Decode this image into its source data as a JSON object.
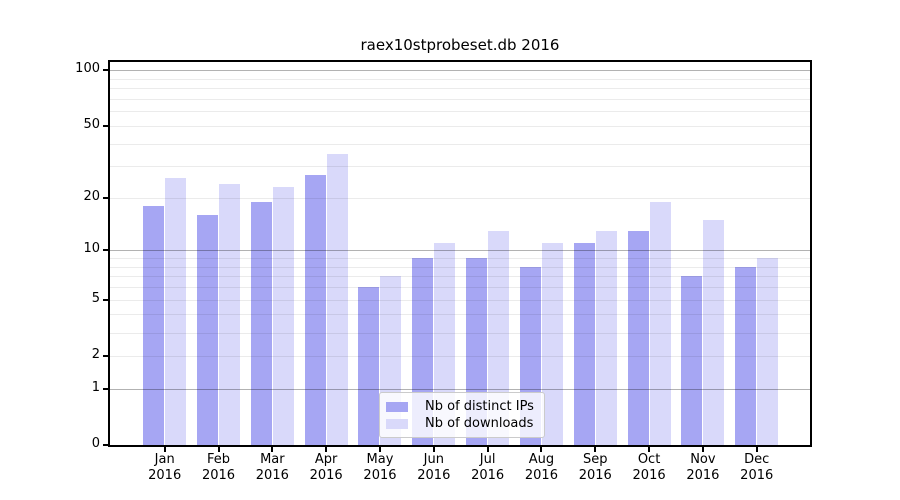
{
  "chart_data": {
    "type": "bar",
    "title": "raex10stprobeset.db 2016",
    "categories": [
      {
        "month": "Jan",
        "year": "2016"
      },
      {
        "month": "Feb",
        "year": "2016"
      },
      {
        "month": "Mar",
        "year": "2016"
      },
      {
        "month": "Apr",
        "year": "2016"
      },
      {
        "month": "May",
        "year": "2016"
      },
      {
        "month": "Jun",
        "year": "2016"
      },
      {
        "month": "Jul",
        "year": "2016"
      },
      {
        "month": "Aug",
        "year": "2016"
      },
      {
        "month": "Sep",
        "year": "2016"
      },
      {
        "month": "Oct",
        "year": "2016"
      },
      {
        "month": "Nov",
        "year": "2016"
      },
      {
        "month": "Dec",
        "year": "2016"
      }
    ],
    "series": [
      {
        "name": "Nb of distinct IPs",
        "color": "#a6a6f3",
        "values": [
          18,
          16,
          19,
          27,
          6,
          9,
          9,
          8,
          11,
          13,
          7,
          8
        ]
      },
      {
        "name": "Nb of downloads",
        "color": "#d9d9fa",
        "values": [
          26,
          24,
          23,
          35,
          7,
          11,
          13,
          11,
          13,
          19,
          15,
          9
        ]
      }
    ],
    "xlabel": "",
    "ylabel": "",
    "yscale": "log10(value+1)",
    "ylim": [
      0,
      110
    ],
    "yticks": [
      100,
      50,
      20,
      10,
      5,
      2,
      1,
      0
    ],
    "grid": true,
    "grid_major_values": [
      100,
      10,
      1
    ],
    "grid_minor_values": [
      90,
      80,
      70,
      60,
      50,
      40,
      30,
      20,
      9,
      8,
      7,
      6,
      5,
      4,
      3,
      2
    ],
    "legend_position": "bottom-center"
  },
  "colors": {
    "background": "#ffffff",
    "axis": "#000000",
    "grid_minor": "#eaeaea",
    "grid_major": "#b0b0b0",
    "bar_distinct_ips": "#a6a6f3",
    "bar_downloads": "#d9d9fa"
  }
}
